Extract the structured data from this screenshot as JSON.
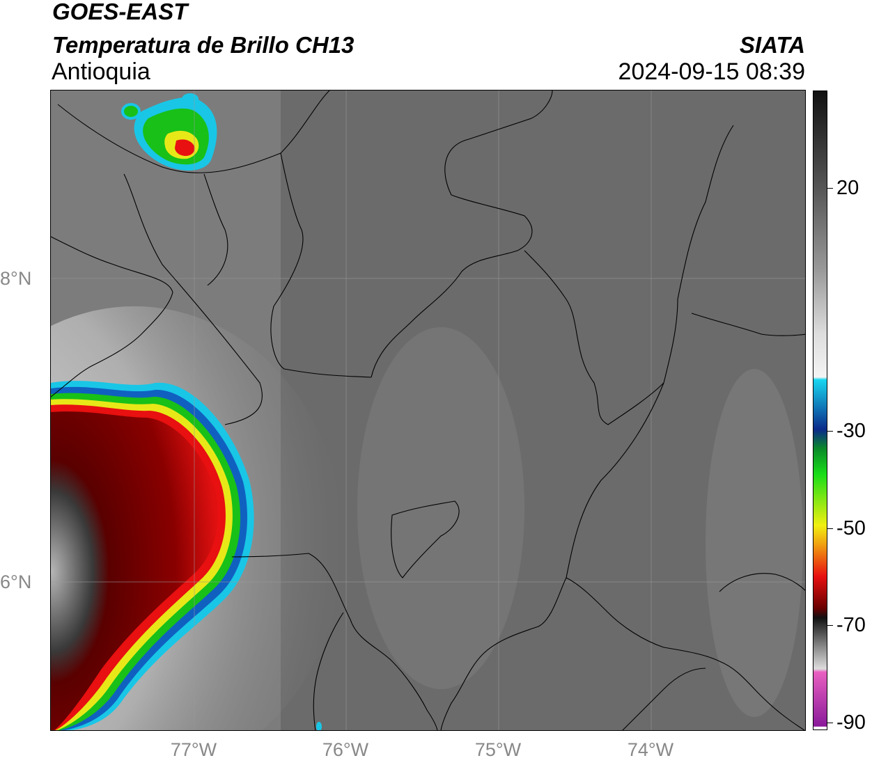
{
  "header": {
    "satellite": "GOES-EAST",
    "product": "Temperatura de Brillo CH13",
    "region": "Antioquia",
    "organization": "SIATA",
    "datetime": "2024-09-15 08:39"
  },
  "map": {
    "lat_labels": [
      "8°N",
      "6°N"
    ],
    "lon_labels": [
      "77°W",
      "76°W",
      "75°W",
      "74°W"
    ],
    "background_gray": "#6a6a6a",
    "gridline_color": "#9a9a9a",
    "border_color": "#000000",
    "storm_colors": {
      "cyan": "#19c6e6",
      "blue": "#1060c0",
      "green": "#18c018",
      "yellow": "#e8e818",
      "red": "#d81010",
      "darkred": "#6a0000"
    }
  },
  "colorbar": {
    "tick_labels": [
      "20",
      "-30",
      "-50",
      "-70",
      "-90"
    ],
    "stops": [
      {
        "color": "#111111",
        "at": 0.0
      },
      {
        "color": "#555555",
        "at": 0.15
      },
      {
        "color": "#999999",
        "at": 0.28
      },
      {
        "color": "#dddddd",
        "at": 0.38
      },
      {
        "color": "#f4f4f4",
        "at": 0.448
      },
      {
        "color": "#18d6f0",
        "at": 0.452
      },
      {
        "color": "#0a2a8a",
        "at": 0.53
      },
      {
        "color": "#0a8a2a",
        "at": 0.56
      },
      {
        "color": "#18dd18",
        "at": 0.6
      },
      {
        "color": "#f0f010",
        "at": 0.68
      },
      {
        "color": "#f0a010",
        "at": 0.71
      },
      {
        "color": "#e81010",
        "at": 0.76
      },
      {
        "color": "#6a0000",
        "at": 0.81
      },
      {
        "color": "#111111",
        "at": 0.825
      },
      {
        "color": "#888888",
        "at": 0.87
      },
      {
        "color": "#dddddd",
        "at": 0.905
      },
      {
        "color": "#e860c0",
        "at": 0.91
      },
      {
        "color": "#8a1a9a",
        "at": 0.995
      },
      {
        "color": "#ffffff",
        "at": 0.996
      }
    ]
  }
}
